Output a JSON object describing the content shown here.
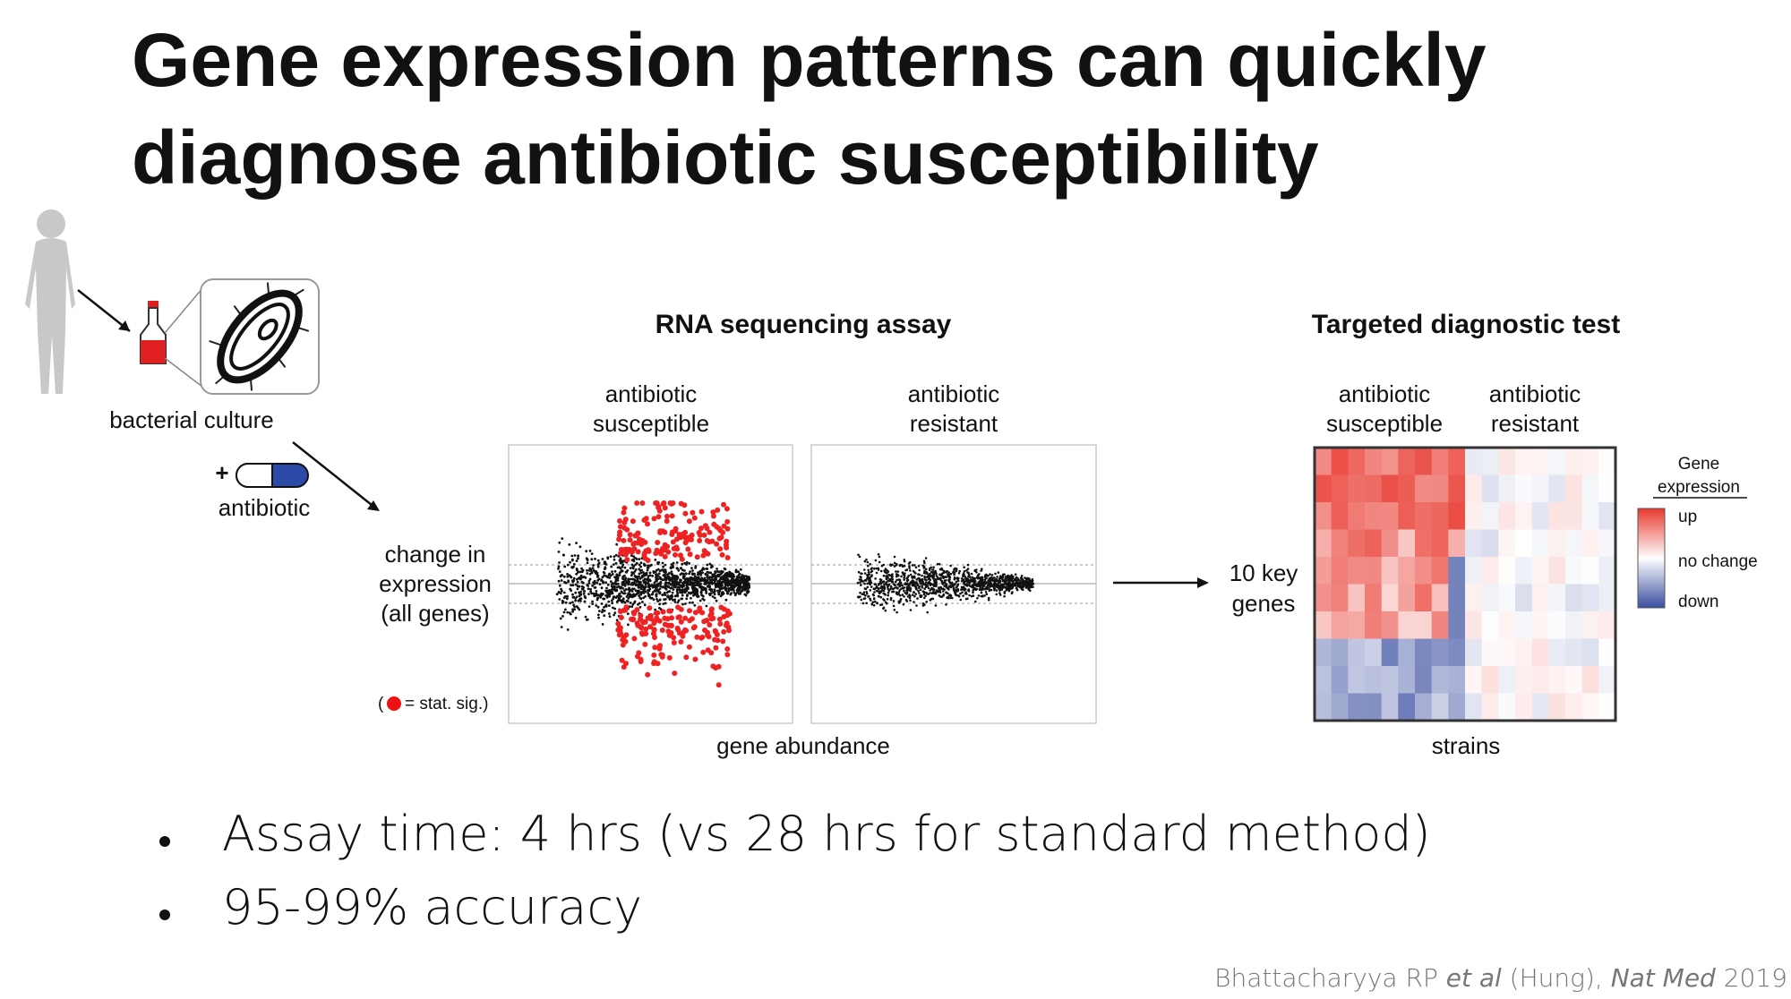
{
  "title": [
    "Gene expression patterns can quickly",
    "diagnose antibiotic susceptibility"
  ],
  "workflow": {
    "culture_label": "bacterial culture",
    "plus": "+",
    "antibiotic_label": "antibiotic"
  },
  "rna_assay": {
    "title": "RNA sequencing assay",
    "susceptible_label": [
      "antibiotic",
      "susceptible"
    ],
    "resistant_label": [
      "antibiotic",
      "resistant"
    ],
    "y_label": [
      "change in",
      "expression",
      "(all genes)"
    ],
    "legend_open": "(",
    "legend_label": "= stat. sig.)",
    "x_label": "gene abundance"
  },
  "diagnostic_test": {
    "title": "Targeted diagnostic test",
    "susceptible_label": [
      "antibiotic",
      "susceptible"
    ],
    "resistant_label": [
      "antibiotic",
      "resistant"
    ],
    "y_label": [
      "10 key",
      "genes"
    ],
    "x_label": "strains",
    "legend": {
      "title": [
        "Gene",
        "expression"
      ],
      "up": "up",
      "no_change": "no change",
      "down": "down"
    }
  },
  "bullets": [
    "Assay time: 4 hrs (vs 28 hrs for standard method)",
    "95-99% accuracy"
  ],
  "citation": [
    {
      "text": "Bhattacharyya RP ",
      "italic": false
    },
    {
      "text": "et al",
      "italic": true
    },
    {
      "text": " (Hung), ",
      "italic": false
    },
    {
      "text": "Nat Med",
      "italic": true
    },
    {
      "text": " 2019",
      "italic": false
    }
  ]
}
